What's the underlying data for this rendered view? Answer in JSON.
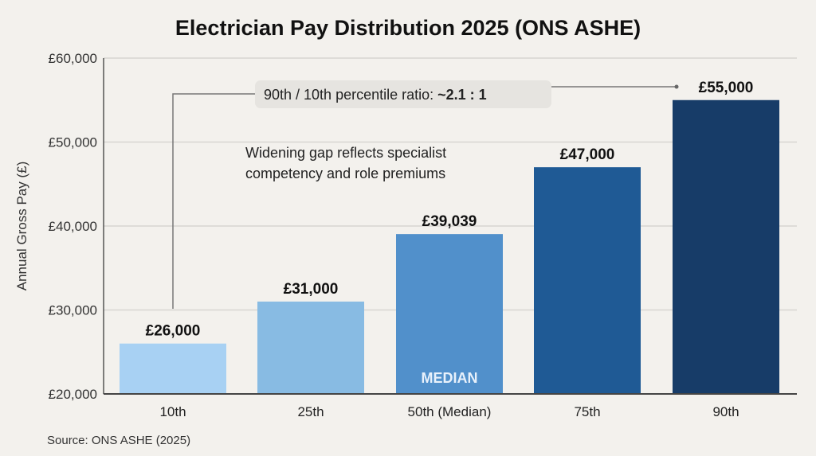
{
  "chart_data": {
    "type": "bar",
    "title": "Electrician Pay Distribution 2025 (ONS ASHE)",
    "xlabel": "",
    "ylabel": "Annual Gross Pay (£)",
    "ylim": [
      20000,
      60000
    ],
    "yticks": [
      20000,
      30000,
      40000,
      50000,
      60000
    ],
    "ytick_labels": [
      "£20,000",
      "£30,000",
      "£40,000",
      "£50,000",
      "£60,000"
    ],
    "grid": true,
    "categories": [
      "10th",
      "25th",
      "50th (Median)",
      "75th",
      "90th"
    ],
    "values": [
      26000,
      31000,
      39039,
      47000,
      55000
    ],
    "data_labels": [
      "£26,000",
      "£31,000",
      "£39,039",
      "£47,000",
      "£55,000"
    ],
    "colors": [
      "#a8d1f3",
      "#88bbe3",
      "#5190cb",
      "#1f5a95",
      "#173c68"
    ],
    "bar_inner_label": {
      "category": "50th (Median)",
      "text": "MEDIAN"
    },
    "annotations": {
      "ratio_prefix": "90th / 10th percentile ratio: ",
      "ratio_value": "~2.1 : 1",
      "note_line1": "Widening gap reflects specialist",
      "note_line2": "competency and role premiums"
    },
    "source": "Source: ONS ASHE (2025)"
  }
}
